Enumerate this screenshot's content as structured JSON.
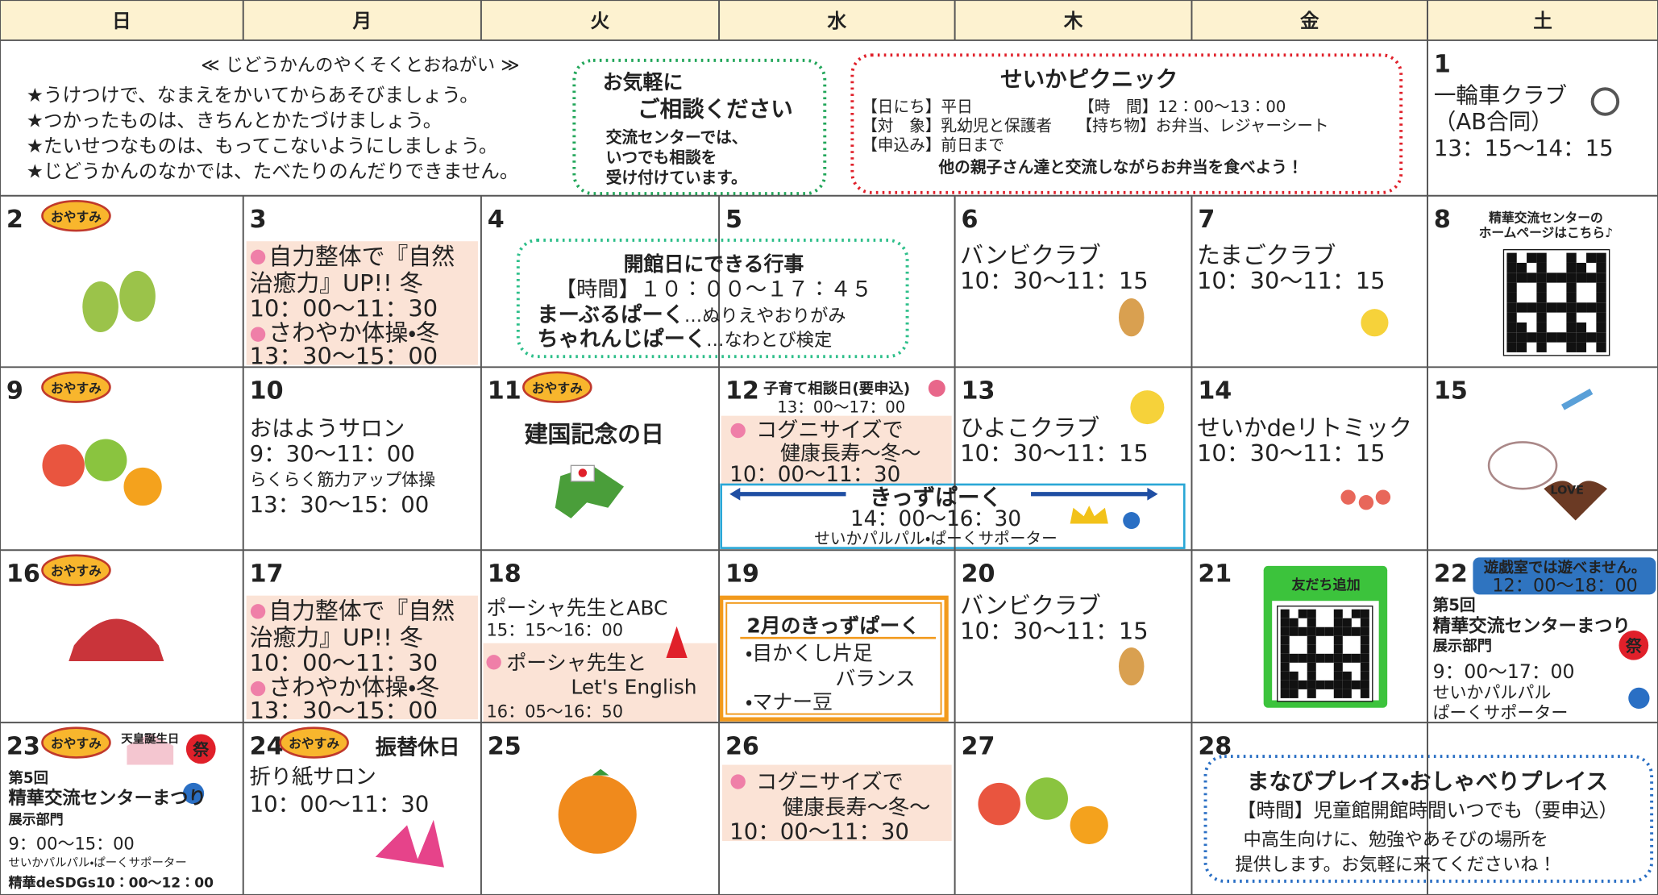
{
  "weekdays": [
    "日",
    "月",
    "火",
    "水",
    "木",
    "金",
    "土"
  ],
  "closed_badge": "おやすみ",
  "promise": {
    "title": "≪ じどうかんのやくそくとおねがい ≫",
    "items": [
      "★うけつけで、なまえをかいてからあそびましょう。",
      "★つかったものは、きちんとかたづけましょう。",
      "★たいせつなものは、もってこないようにしましょう。",
      "★じどうかんのなかでは、たべたりのんだりできません。"
    ]
  },
  "consult": {
    "title": [
      "お気軽に",
      "ご相談ください"
    ],
    "body": [
      "交流センターでは、",
      "いつでも相談を",
      "受け付けています。"
    ]
  },
  "picnic": {
    "title": "せいかピクニック",
    "date": "【日にち】平日",
    "time": "【時　間】12：00～13：00",
    "target": "【対　象】乳幼児と保護者",
    "bring": "【持ち物】お弁当、レジャーシート",
    "apply": "【申込み】前日まで",
    "note": "他の親子さん達と交流しながらお弁当を食べよう！"
  },
  "days": [
    {
      "date": "1",
      "lines": [
        "一輪車クラブ",
        "（AB合同）",
        "13：15～14：15"
      ]
    },
    {
      "date": "2"
    },
    {
      "date": "3",
      "lines": [
        "自力整体で『自然",
        "治癒力』UP!! 冬",
        "10：00～11：30",
        "さわやか体操・冬",
        "13：30～15：00"
      ]
    },
    {
      "date": "4"
    },
    {
      "date": "5"
    },
    {
      "date": "6",
      "lines": [
        "バンビクラブ",
        "10：30～11：15"
      ]
    },
    {
      "date": "7",
      "lines": [
        "たまごクラブ",
        "10：30～11：15"
      ]
    },
    {
      "date": "8",
      "lines": [
        "精華交流センターの",
        "ホームページはこちら♪"
      ]
    },
    {
      "date": "9"
    },
    {
      "date": "10",
      "lines": [
        "おはようサロン",
        "9：30～11：00",
        "らくらく筋力アップ体操",
        "13：30～15：00"
      ]
    },
    {
      "date": "11",
      "lines": [
        "建国記念の日"
      ]
    },
    {
      "date": "12",
      "lines": [
        "子育て相談日(要申込)",
        "13：00～17：00",
        "コグニサイズで",
        "健康長寿～冬～",
        "10：00～11：30"
      ]
    },
    {
      "date": "13",
      "lines": [
        "ひよこクラブ",
        "10：30～11：15"
      ]
    },
    {
      "date": "14",
      "lines": [
        "せいかdeリトミック",
        "10：30～11：15"
      ]
    },
    {
      "date": "15",
      "lines": [
        "LOVE"
      ]
    },
    {
      "date": "16"
    },
    {
      "date": "17",
      "lines": [
        "自力整体で『自然",
        "治癒力』UP!! 冬",
        "10：00～11：30",
        "さわやか体操・冬",
        "13：30～15：00"
      ]
    },
    {
      "date": "18",
      "lines": [
        "ポーシャ先生とABC",
        "15：15～16：00",
        "ポーシャ先生と",
        "Let's English",
        "16：05～16：50"
      ]
    },
    {
      "date": "19"
    },
    {
      "date": "20",
      "lines": [
        "バンビクラブ",
        "10：30～11：15"
      ]
    },
    {
      "date": "21",
      "lines": [
        "友だち追加"
      ]
    },
    {
      "date": "22",
      "lines": [
        "遊戯室では遊べません。",
        "12：00～18：00",
        "第5回",
        "精華交流センターまつり",
        "展示部門",
        "9：00～17：00",
        "せいかパルパル",
        "ぱーくサポーター",
        "祭"
      ]
    },
    {
      "date": "23",
      "lines": [
        "天皇誕生日",
        "祭",
        "第5回",
        "精華交流センターまつり",
        "展示部門",
        "9：00～15：00",
        "せいかパルパル・ぱーくサポーター",
        "精華deSDGs10：00～12：00"
      ]
    },
    {
      "date": "24",
      "lines": [
        "振替休日",
        "折り紙サロン",
        "10：00～11：30"
      ]
    },
    {
      "date": "25"
    },
    {
      "date": "26",
      "lines": [
        "コグニサイズで",
        "健康長寿～冬～",
        "10：00～11：30"
      ]
    },
    {
      "date": "27"
    },
    {
      "date": "28"
    }
  ],
  "open_day": {
    "title": "開館日にできる行事",
    "time": "【時間】１０：００～１７：４５",
    "items": [
      {
        "name": "まーぶるぱーく",
        "detail": "…ぬりえやおりがみ"
      },
      {
        "name": "ちゃれんじぱーく",
        "detail": "…なわとび検定"
      }
    ]
  },
  "kids_park": {
    "title": "きっずぱーく",
    "time": "14：00～16：30",
    "staff": "せいかパルパル・ぱーくサポーター"
  },
  "feb_kids_park": {
    "title": "2月のきっずぱーく",
    "items": [
      "・目かくし片足",
      "バランス",
      "・マナー豆"
    ]
  },
  "manabi": {
    "title": "まなびプレイス・おしゃべりプレイス",
    "time": "【時間】児童館開館時間いつでも（要申込）",
    "lines": [
      "中高生向けに、勉強やあそびの場所を",
      "提供します。お気軽に来てくださいね！"
    ]
  }
}
